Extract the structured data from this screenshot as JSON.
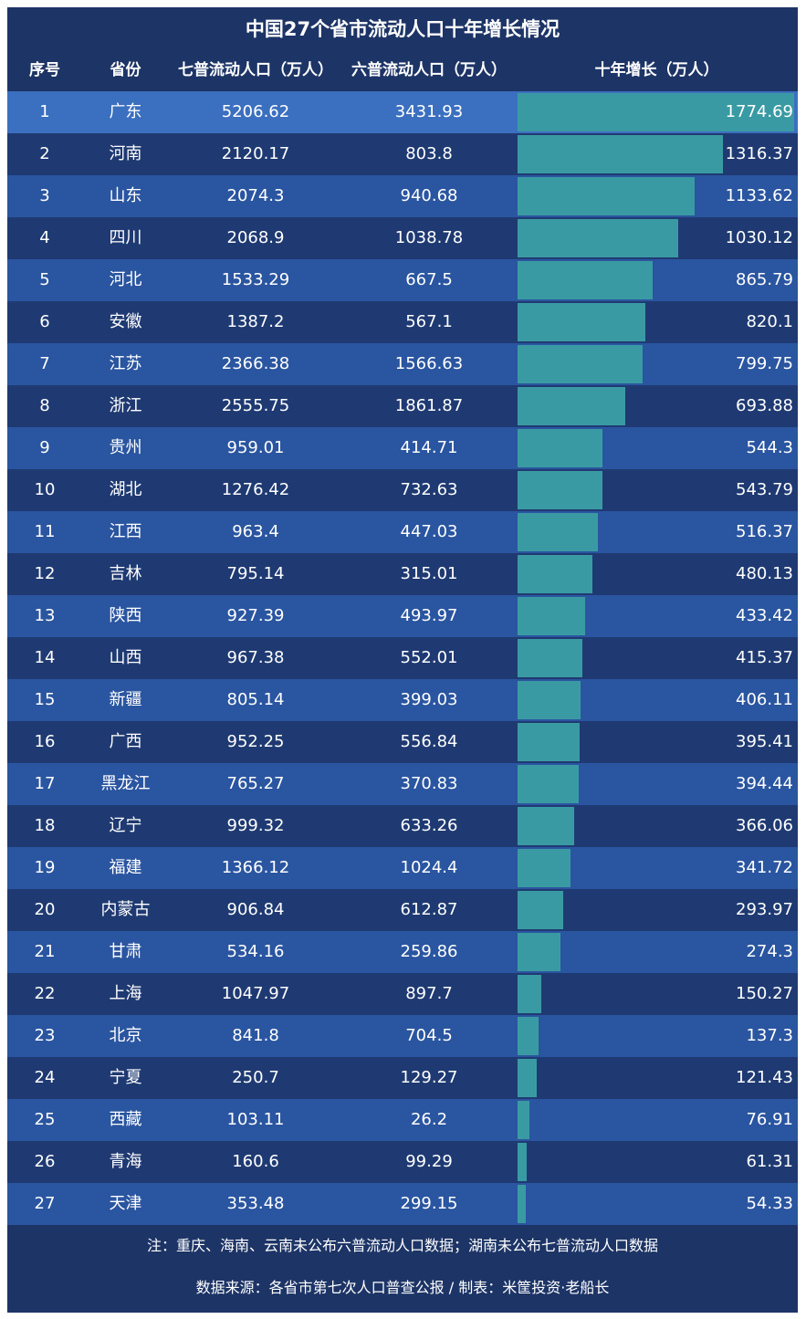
{
  "title": "中国27个省市流动人口十年增长情况",
  "headers": {
    "rank": "序号",
    "province": "省份",
    "seventh": "七普流动人口（万人）",
    "sixth": "六普流动人口（万人）",
    "growth": "十年增长（万人）"
  },
  "colors": {
    "background": "#1d3466",
    "row_dark": "#1f3a72",
    "row_light": "#2a55a0",
    "highlight": "#3b6fbf",
    "bar": "#3a9aa3",
    "text": "#ffffff"
  },
  "chart_data": {
    "type": "table",
    "title": "中国27个省市流动人口十年增长情况",
    "columns": [
      "序号",
      "省份",
      "七普流动人口（万人）",
      "六普流动人口（万人）",
      "十年增长（万人）"
    ],
    "bar_column": "十年增长（万人）",
    "bar_max": 1774.69,
    "rows": [
      {
        "rank": "1",
        "province": "广东",
        "seventh": "5206.62",
        "sixth": "3431.93",
        "growth": "1774.69",
        "growth_value": 1774.69
      },
      {
        "rank": "2",
        "province": "河南",
        "seventh": "2120.17",
        "sixth": "803.8",
        "growth": "1316.37",
        "growth_value": 1316.37
      },
      {
        "rank": "3",
        "province": "山东",
        "seventh": "2074.3",
        "sixth": "940.68",
        "growth": "1133.62",
        "growth_value": 1133.62
      },
      {
        "rank": "4",
        "province": "四川",
        "seventh": "2068.9",
        "sixth": "1038.78",
        "growth": "1030.12",
        "growth_value": 1030.12
      },
      {
        "rank": "5",
        "province": "河北",
        "seventh": "1533.29",
        "sixth": "667.5",
        "growth": "865.79",
        "growth_value": 865.79
      },
      {
        "rank": "6",
        "province": "安徽",
        "seventh": "1387.2",
        "sixth": "567.1",
        "growth": "820.1",
        "growth_value": 820.1
      },
      {
        "rank": "7",
        "province": "江苏",
        "seventh": "2366.38",
        "sixth": "1566.63",
        "growth": "799.75",
        "growth_value": 799.75
      },
      {
        "rank": "8",
        "province": "浙江",
        "seventh": "2555.75",
        "sixth": "1861.87",
        "growth": "693.88",
        "growth_value": 693.88
      },
      {
        "rank": "9",
        "province": "贵州",
        "seventh": "959.01",
        "sixth": "414.71",
        "growth": "544.3",
        "growth_value": 544.3
      },
      {
        "rank": "10",
        "province": "湖北",
        "seventh": "1276.42",
        "sixth": "732.63",
        "growth": "543.79",
        "growth_value": 543.79
      },
      {
        "rank": "11",
        "province": "江西",
        "seventh": "963.4",
        "sixth": "447.03",
        "growth": "516.37",
        "growth_value": 516.37
      },
      {
        "rank": "12",
        "province": "吉林",
        "seventh": "795.14",
        "sixth": "315.01",
        "growth": "480.13",
        "growth_value": 480.13
      },
      {
        "rank": "13",
        "province": "陕西",
        "seventh": "927.39",
        "sixth": "493.97",
        "growth": "433.42",
        "growth_value": 433.42
      },
      {
        "rank": "14",
        "province": "山西",
        "seventh": "967.38",
        "sixth": "552.01",
        "growth": "415.37",
        "growth_value": 415.37
      },
      {
        "rank": "15",
        "province": "新疆",
        "seventh": "805.14",
        "sixth": "399.03",
        "growth": "406.11",
        "growth_value": 406.11
      },
      {
        "rank": "16",
        "province": "广西",
        "seventh": "952.25",
        "sixth": "556.84",
        "growth": "395.41",
        "growth_value": 395.41
      },
      {
        "rank": "17",
        "province": "黑龙江",
        "seventh": "765.27",
        "sixth": "370.83",
        "growth": "394.44",
        "growth_value": 394.44
      },
      {
        "rank": "18",
        "province": "辽宁",
        "seventh": "999.32",
        "sixth": "633.26",
        "growth": "366.06",
        "growth_value": 366.06
      },
      {
        "rank": "19",
        "province": "福建",
        "seventh": "1366.12",
        "sixth": "1024.4",
        "growth": "341.72",
        "growth_value": 341.72
      },
      {
        "rank": "20",
        "province": "内蒙古",
        "seventh": "906.84",
        "sixth": "612.87",
        "growth": "293.97",
        "growth_value": 293.97
      },
      {
        "rank": "21",
        "province": "甘肃",
        "seventh": "534.16",
        "sixth": "259.86",
        "growth": "274.3",
        "growth_value": 274.3
      },
      {
        "rank": "22",
        "province": "上海",
        "seventh": "1047.97",
        "sixth": "897.7",
        "growth": "150.27",
        "growth_value": 150.27
      },
      {
        "rank": "23",
        "province": "北京",
        "seventh": "841.8",
        "sixth": "704.5",
        "growth": "137.3",
        "growth_value": 137.3
      },
      {
        "rank": "24",
        "province": "宁夏",
        "seventh": "250.7",
        "sixth": "129.27",
        "growth": "121.43",
        "growth_value": 121.43
      },
      {
        "rank": "25",
        "province": "西藏",
        "seventh": "103.11",
        "sixth": "26.2",
        "growth": "76.91",
        "growth_value": 76.91
      },
      {
        "rank": "26",
        "province": "青海",
        "seventh": "160.6",
        "sixth": "99.29",
        "growth": "61.31",
        "growth_value": 61.31
      },
      {
        "rank": "27",
        "province": "天津",
        "seventh": "353.48",
        "sixth": "299.15",
        "growth": "54.33",
        "growth_value": 54.33
      }
    ]
  },
  "footer": {
    "note": "注：重庆、海南、云南未公布六普流动人口数据；湖南未公布七普流动人口数据",
    "source": "数据来源：各省市第七次人口普查公报 / 制表：米筐投资·老船长"
  }
}
